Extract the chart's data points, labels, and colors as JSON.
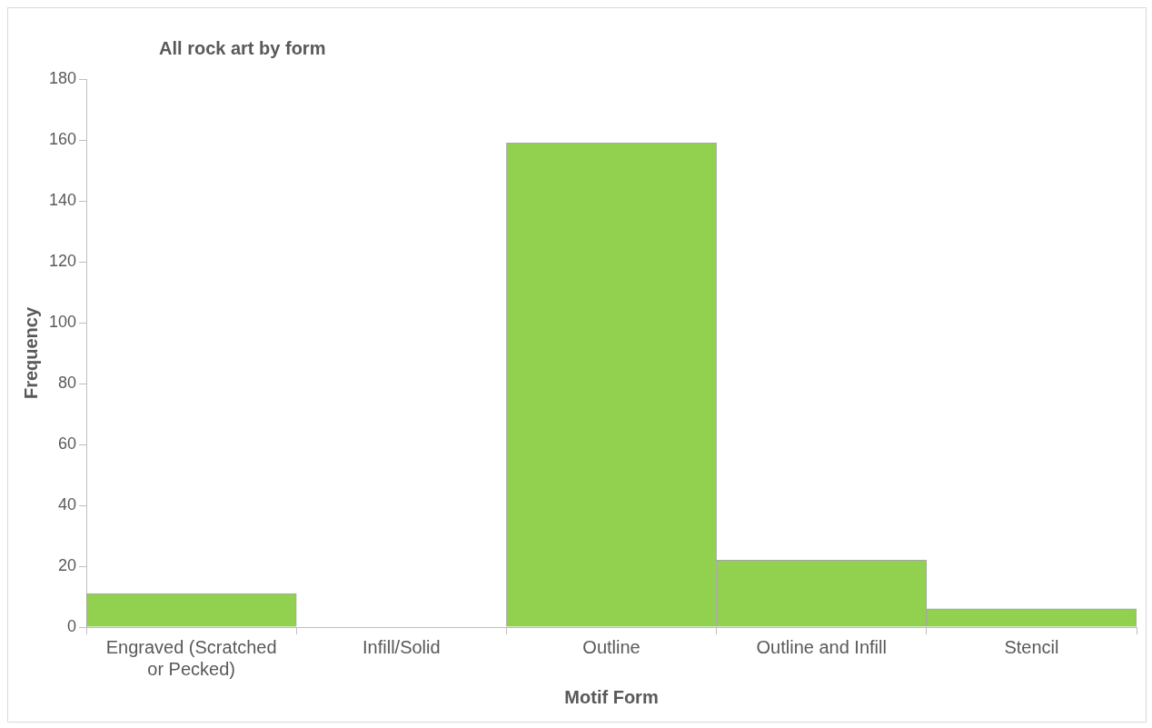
{
  "chart_data": {
    "type": "bar",
    "title": "All rock art by form",
    "xlabel": "Motif Form",
    "ylabel": "Frequency",
    "categories": [
      "Engraved (Scratched or Pecked)",
      "Infill/Solid",
      "Outline",
      "Outline and Infill",
      "Stencil"
    ],
    "values": [
      11,
      0,
      159,
      22,
      6
    ],
    "color": "#92d050",
    "ylim": [
      0,
      180
    ],
    "yticks": [
      0,
      20,
      40,
      60,
      80,
      100,
      120,
      140,
      160,
      180
    ],
    "grid": false,
    "legend": false
  }
}
